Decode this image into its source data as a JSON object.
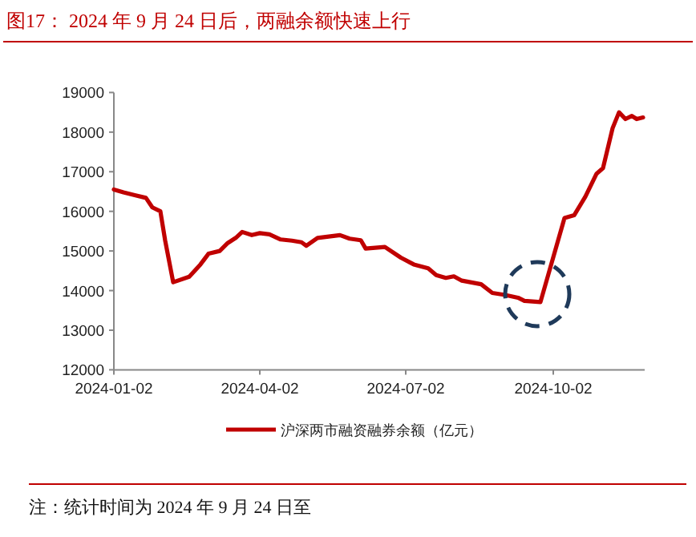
{
  "chart_data": {
    "type": "line",
    "title": "图17：  2024 年 9 月 24 日后，两融余额快速上行",
    "x": [
      "2024-01-02",
      "2024-01-08",
      "2024-01-15",
      "2024-01-22",
      "2024-01-26",
      "2024-01-31",
      "2024-02-03",
      "2024-02-08",
      "2024-02-18",
      "2024-02-25",
      "2024-03-01",
      "2024-03-08",
      "2024-03-13",
      "2024-03-18",
      "2024-03-22",
      "2024-03-28",
      "2024-04-02",
      "2024-04-08",
      "2024-04-15",
      "2024-04-22",
      "2024-04-28",
      "2024-05-01",
      "2024-05-08",
      "2024-05-22",
      "2024-05-28",
      "2024-06-04",
      "2024-06-07",
      "2024-06-19",
      "2024-06-29",
      "2024-07-07",
      "2024-07-16",
      "2024-07-21",
      "2024-07-27",
      "2024-08-01",
      "2024-08-06",
      "2024-08-18",
      "2024-08-25",
      "2024-09-02",
      "2024-09-10",
      "2024-09-14",
      "2024-09-24",
      "2024-10-09",
      "2024-10-15",
      "2024-10-22",
      "2024-10-29",
      "2024-11-02",
      "2024-11-08",
      "2024-11-12",
      "2024-11-16",
      "2024-11-20",
      "2024-11-23",
      "2024-11-27"
    ],
    "series": [
      {
        "name": "沪深两市融资融券余额（亿元）",
        "color": "#c00000",
        "values": [
          16550,
          16480,
          16410,
          16340,
          16100,
          16000,
          15260,
          14210,
          14350,
          14660,
          14930,
          15000,
          15200,
          15330,
          15480,
          15400,
          15450,
          15420,
          15290,
          15260,
          15220,
          15130,
          15330,
          15400,
          15310,
          15270,
          15060,
          15100,
          14830,
          14660,
          14560,
          14390,
          14320,
          14360,
          14250,
          14160,
          13940,
          13890,
          13820,
          13740,
          13710,
          15830,
          15900,
          16370,
          16950,
          17090,
          18100,
          18500,
          18330,
          18410,
          18330,
          18370
        ]
      }
    ],
    "xlim": [
      "2024-01-02",
      "2024-11-28"
    ],
    "xticks": [
      "2024-01-02",
      "2024-04-02",
      "2024-07-02",
      "2024-10-02"
    ],
    "ylim": [
      12000,
      19000
    ],
    "yticks": [
      12000,
      13000,
      14000,
      15000,
      16000,
      17000,
      18000,
      19000
    ],
    "legend": "bottom",
    "annotations": [
      "注：统计时间为 2024 年 9 月 24 日至"
    ]
  }
}
